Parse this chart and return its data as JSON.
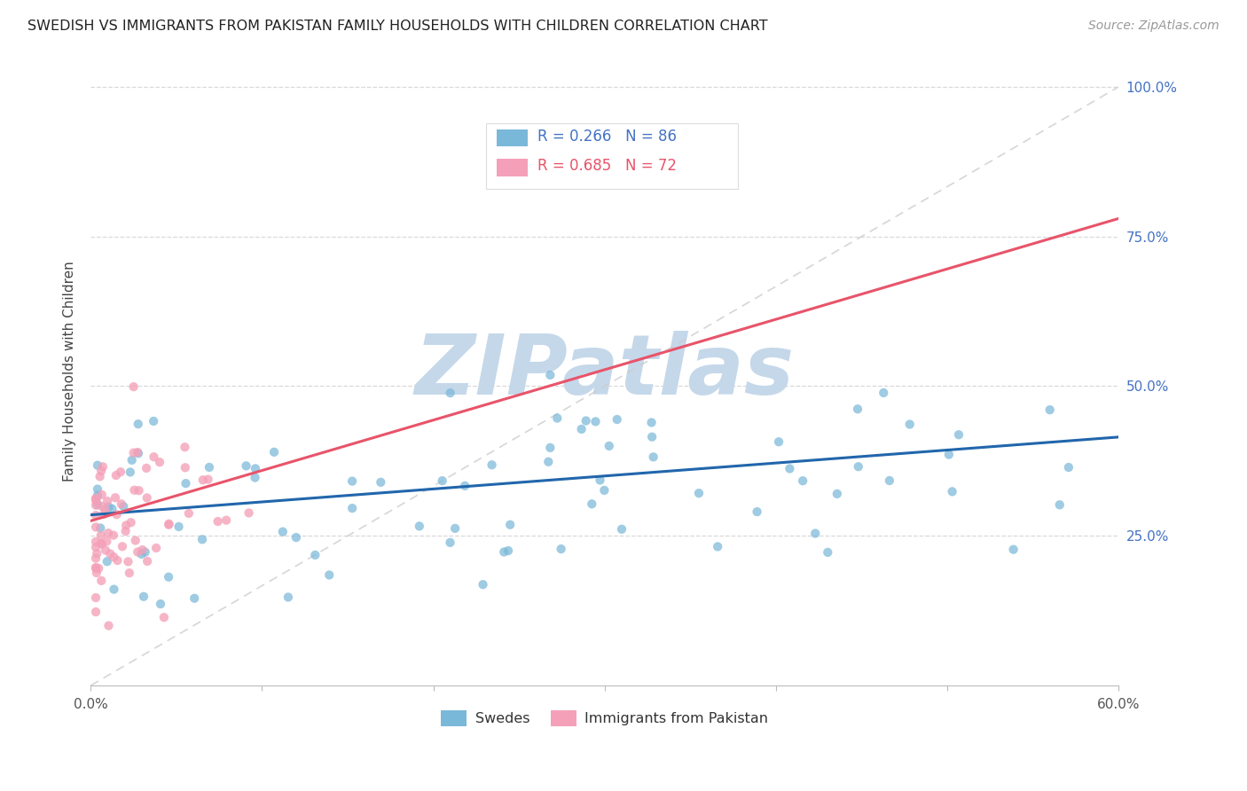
{
  "title": "SWEDISH VS IMMIGRANTS FROM PAKISTAN FAMILY HOUSEHOLDS WITH CHILDREN CORRELATION CHART",
  "source": "Source: ZipAtlas.com",
  "ylabel": "Family Households with Children",
  "xlabel_swedes": "Swedes",
  "xlabel_pakistan": "Immigrants from Pakistan",
  "xmin": 0.0,
  "xmax": 0.6,
  "ymin": 0.0,
  "ymax": 1.05,
  "ytick_vals": [
    0.25,
    0.5,
    0.75,
    1.0
  ],
  "ytick_labels": [
    "25.0%",
    "50.0%",
    "75.0%",
    "100.0%"
  ],
  "xtick_vals": [
    0.0,
    0.1,
    0.2,
    0.3,
    0.4,
    0.5,
    0.6
  ],
  "xtick_labels": [
    "0.0%",
    "",
    "",
    "",
    "",
    "",
    "60.0%"
  ],
  "R_swedes": 0.266,
  "N_swedes": 86,
  "R_pakistan": 0.685,
  "N_pakistan": 72,
  "color_swedes": "#7ab8d9",
  "color_pakistan": "#f4a0b8",
  "trendline_swedes": "#2166ac",
  "trendline_pakistan": "#e8546a",
  "trendline_diagonal": "#cccccc",
  "watermark": "ZIPatlas",
  "watermark_color": "#c5d8ea",
  "legend_color_swedes": "#4472c4",
  "legend_color_pakistan": "#e8546a",
  "sw_trendline_x0": 0.0,
  "sw_trendline_y0": 0.285,
  "sw_trendline_x1": 0.6,
  "sw_trendline_y1": 0.415,
  "pk_trendline_x0": 0.0,
  "pk_trendline_y0": 0.275,
  "pk_trendline_x1": 0.6,
  "pk_trendline_y1": 0.78
}
